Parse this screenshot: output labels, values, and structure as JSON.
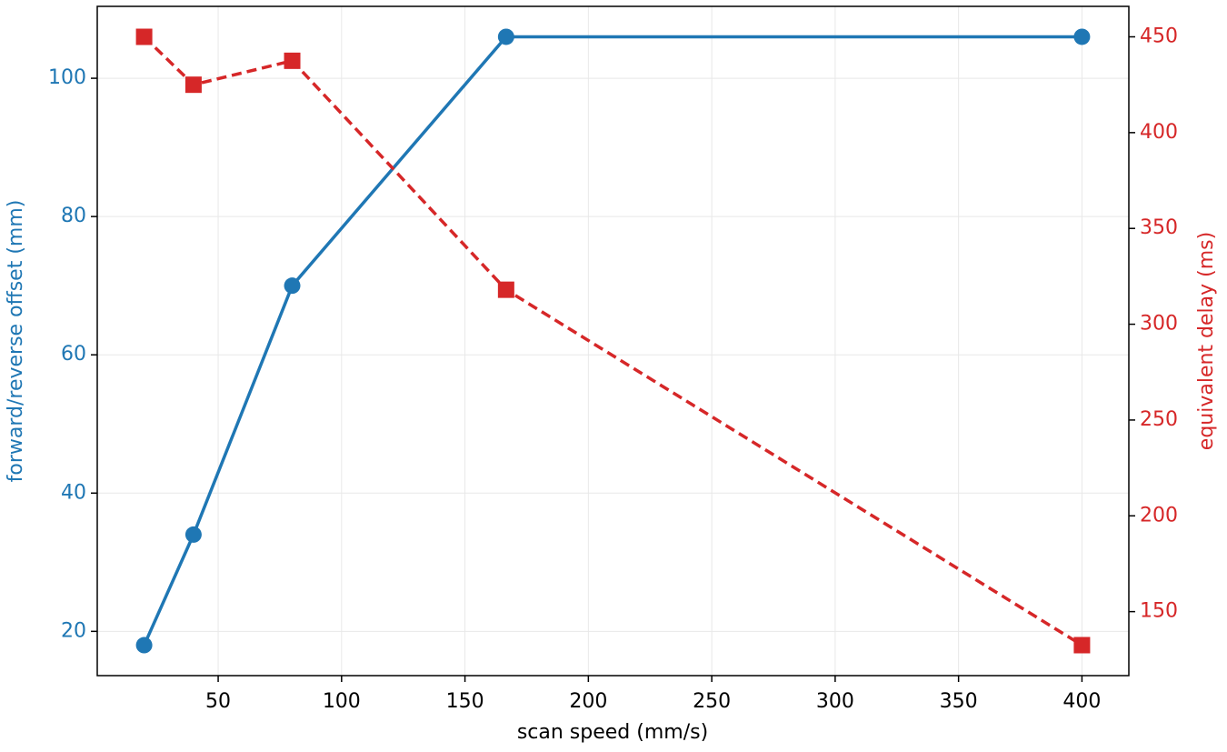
{
  "chart_data": {
    "type": "line",
    "x_label": "scan speed (mm/s)",
    "y_label": "forward/reverse offset (mm)",
    "y2_label": "equivalent delay (ms)",
    "x": [
      20,
      40,
      80,
      166.67,
      400
    ],
    "series": [
      {
        "name": "forward/reverse offset",
        "color": "#1f77b4",
        "values": [
          18,
          34,
          70,
          106,
          106
        ],
        "marker": "circle",
        "dash": "solid"
      },
      {
        "name": "equivalent delay",
        "color": "#d62728",
        "values": [
          450,
          425,
          437.5,
          318,
          132.5
        ],
        "marker": "square",
        "dash": "dashed",
        "axis": "y2"
      }
    ],
    "xlim": [
      1,
      419
    ],
    "xticks": [
      50,
      100,
      150,
      200,
      250,
      300,
      350,
      400
    ],
    "ylim": [
      13.6,
      110.4
    ],
    "yticks": [
      20,
      40,
      60,
      80,
      100
    ],
    "y2lim": [
      116.6,
      465.9
    ],
    "y2ticks": [
      150,
      200,
      250,
      300,
      350,
      400,
      450
    ],
    "grid": true
  }
}
